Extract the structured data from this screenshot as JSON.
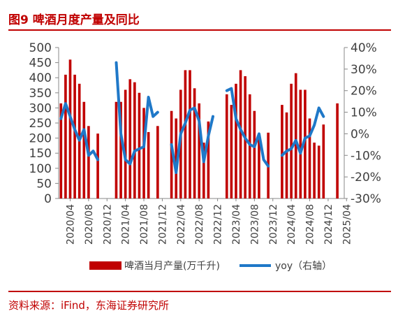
{
  "figure": {
    "title": "图9  啤酒月度产量及同比",
    "source": "资料来源：iFind，东海证券研究所"
  },
  "colors": {
    "bar": "#c00000",
    "line": "#1f78c8",
    "axis": "#888888",
    "text": "#404040"
  },
  "chart_data": {
    "type": "bar",
    "title": "",
    "x": [
      "2020-02",
      "2020-03",
      "2020-04",
      "2020-05",
      "2020-06",
      "2020-07",
      "2020-08",
      "2020-09",
      "2020-10",
      "2020-11",
      "2020-12",
      "2021-02",
      "2021-03",
      "2021-04",
      "2021-05",
      "2021-06",
      "2021-07",
      "2021-08",
      "2021-09",
      "2021-10",
      "2021-11",
      "2021-12",
      "2022-02",
      "2022-03",
      "2022-04",
      "2022-05",
      "2022-06",
      "2022-07",
      "2022-08",
      "2022-09",
      "2022-10",
      "2022-11",
      "2022-12",
      "2023-02",
      "2023-03",
      "2023-04",
      "2023-05",
      "2023-06",
      "2023-07",
      "2023-08",
      "2023-09",
      "2023-10",
      "2023-11",
      "2023-12",
      "2024-02",
      "2024-03",
      "2024-04",
      "2024-05",
      "2024-06",
      "2024-07",
      "2024-08",
      "2024-09",
      "2024-10",
      "2024-11",
      "2024-12",
      "2025-02",
      "2025-03"
    ],
    "x_tick_labels": [
      "2020/04",
      "2020/08",
      "2020/12",
      "2021/04",
      "2021/08",
      "2021/12",
      "2022/04",
      "2022/08",
      "2022/12",
      "2023/04",
      "2023/08",
      "2023/12",
      "2024/04",
      "2024/08",
      "2024/12",
      "2025/04"
    ],
    "x_tick_months": [
      "2020-04",
      "2020-08",
      "2020-12",
      "2021-04",
      "2021-08",
      "2021-12",
      "2022-04",
      "2022-08",
      "2022-12",
      "2023-04",
      "2023-08",
      "2023-12",
      "2024-04",
      "2024-08",
      "2024-12",
      "2025-04"
    ],
    "series": [
      {
        "name": "啤酒当月产量(万千升)",
        "type": "bar",
        "axis": "left",
        "values": [
          315,
          410,
          460,
          410,
          380,
          320,
          240,
          null,
          215,
          null,
          null,
          320,
          320,
          360,
          395,
          385,
          350,
          300,
          220,
          null,
          240,
          null,
          290,
          265,
          360,
          425,
          425,
          365,
          315,
          185,
          255,
          null,
          null,
          345,
          310,
          380,
          425,
          405,
          345,
          290,
          215,
          null,
          218,
          null,
          310,
          285,
          380,
          415,
          360,
          360,
          265,
          185,
          175,
          245,
          null,
          315,
          null
        ]
      },
      {
        "name": "yoy（右轴）",
        "type": "line",
        "axis": "right",
        "values": [
          7,
          14,
          8,
          2,
          -3,
          2,
          -10,
          -8,
          -12,
          null,
          null,
          33,
          0,
          -12,
          -14,
          -8,
          -7,
          -6,
          17,
          8,
          10,
          null,
          -5,
          -18,
          0,
          5,
          11,
          12,
          6,
          -13,
          -1,
          8,
          null,
          20,
          21,
          7,
          2,
          -2,
          -5,
          -6,
          0,
          -12,
          -15,
          null,
          -10,
          -8,
          -7,
          -3,
          -9,
          -2,
          -1,
          4,
          12,
          8,
          null,
          2,
          null
        ]
      }
    ],
    "y_left": {
      "min": 0,
      "max": 500,
      "ticks": [
        0,
        50,
        100,
        150,
        200,
        250,
        300,
        350,
        400,
        450,
        500
      ]
    },
    "y_right": {
      "min": -30,
      "max": 40,
      "ticks": [
        "-30%",
        "-20%",
        "-10%",
        "0%",
        "10%",
        "20%",
        "30%",
        "40%"
      ],
      "tick_values": [
        -30,
        -20,
        -10,
        0,
        10,
        20,
        30,
        40
      ]
    },
    "legend_position": "bottom",
    "grid": false
  }
}
